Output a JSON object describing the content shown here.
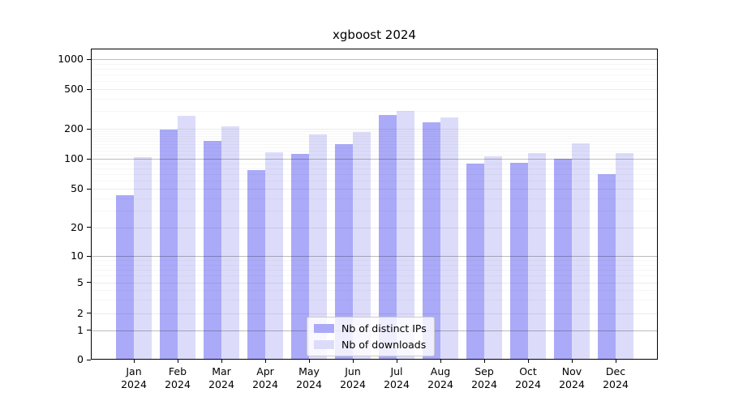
{
  "chart_data": {
    "type": "bar",
    "title": "xgboost 2024",
    "categories": [
      "Jan 2024",
      "Feb 2024",
      "Mar 2024",
      "Apr 2024",
      "May 2024",
      "Jun 2024",
      "Jul 2024",
      "Aug 2024",
      "Sep 2024",
      "Oct 2024",
      "Nov 2024",
      "Dec 2024"
    ],
    "series": [
      {
        "name": "Nb of distinct IPs",
        "color": "#aaaaf8",
        "values": [
          43,
          197,
          152,
          77,
          112,
          140,
          277,
          233,
          90,
          92,
          100,
          70
        ]
      },
      {
        "name": "Nb of downloads",
        "color": "#dcdcfa",
        "values": [
          104,
          270,
          212,
          116,
          175,
          184,
          301,
          258,
          106,
          113,
          142,
          114
        ]
      }
    ],
    "xlabel": "",
    "ylabel": "",
    "yscale": "symlog",
    "y_ticks": [
      0,
      1,
      2,
      5,
      10,
      20,
      50,
      100,
      200,
      500,
      1000
    ],
    "y_tick_labels": [
      "0",
      "1",
      "2",
      "5",
      "10",
      "20",
      "50",
      "100",
      "200",
      "500",
      "1000"
    ],
    "ylim": [
      0,
      1400
    ],
    "grid": "both",
    "legend_position": "lower center",
    "colors": {
      "grid_power": "rgba(0,0,0,0.26)",
      "grid_labeled": "rgba(0,0,0,0.08)",
      "grid_minor": "rgba(0,0,0,0.035)"
    }
  }
}
